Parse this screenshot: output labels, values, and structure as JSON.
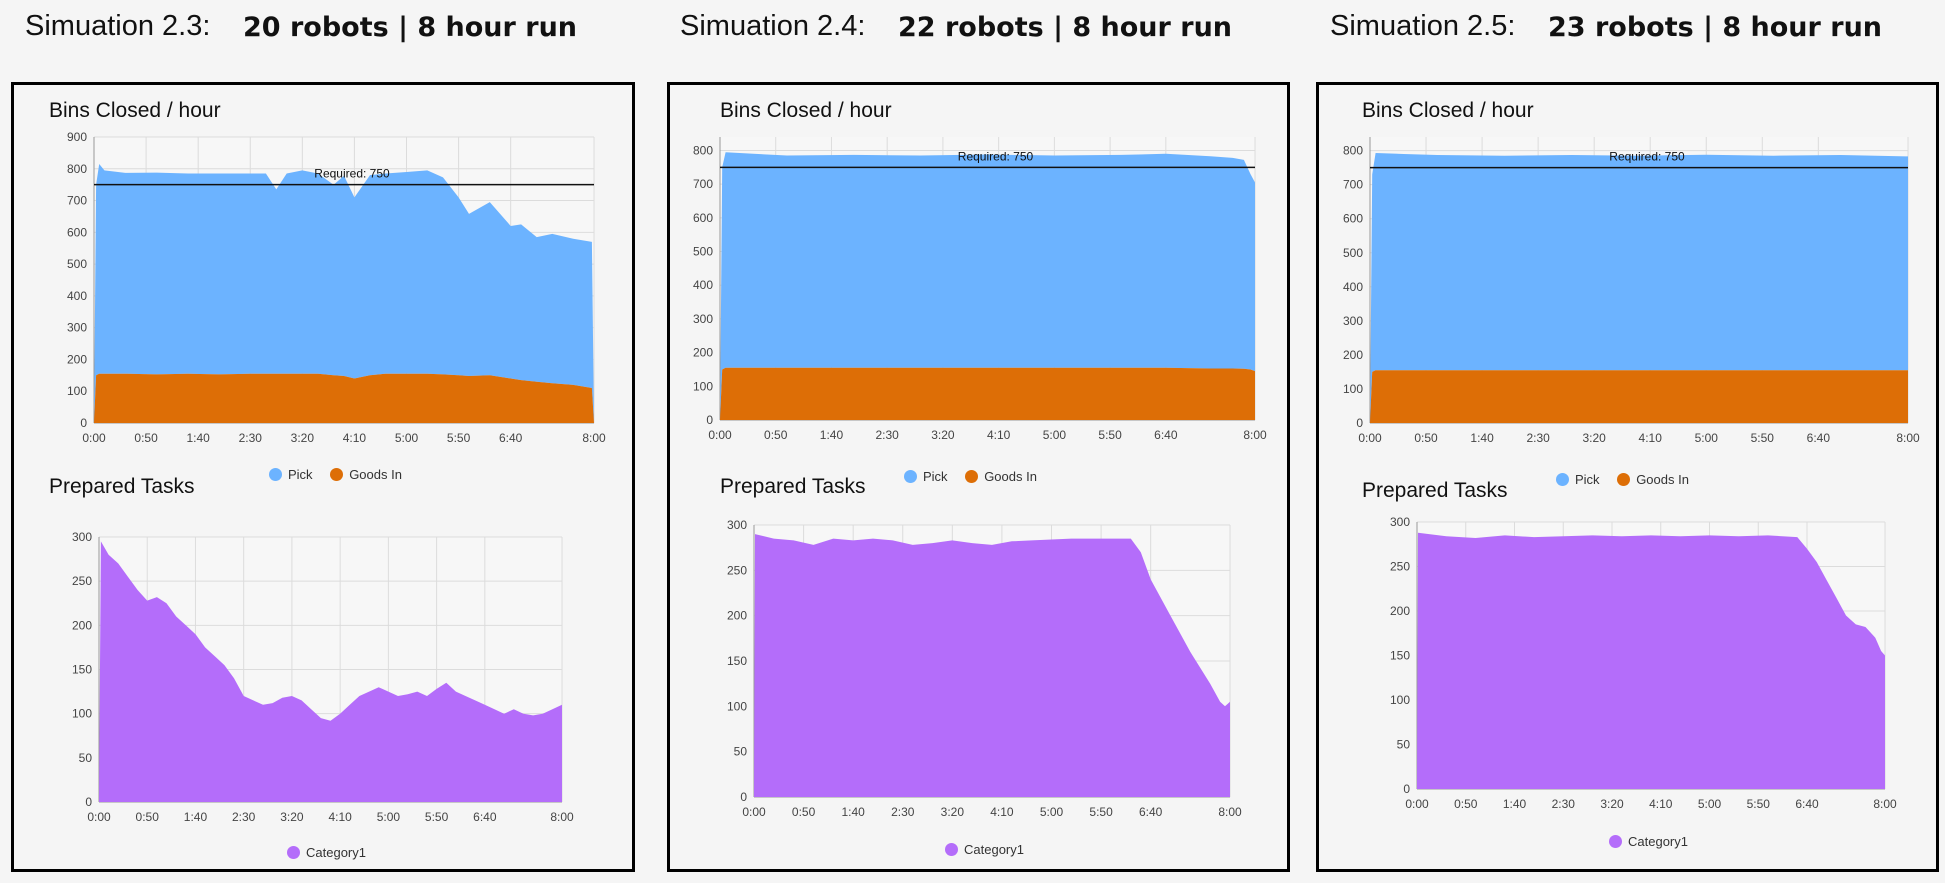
{
  "colors": {
    "pick": "#6cb3ff",
    "goods_in": "#dd6e06",
    "category1": "#b46dfa",
    "grid": "#dcdcdc",
    "required_line": "#111111"
  },
  "simulations": [
    {
      "label": "Simuation 2.3:",
      "description": "20 robots | 8 hour run"
    },
    {
      "label": "Simuation 2.4:",
      "description": "22 robots | 8 hour run"
    },
    {
      "label": "Simuation 2.5:",
      "description": "23 robots | 8 hour run"
    }
  ],
  "chart_titles": {
    "bins": "Bins Closed / hour",
    "tasks": "Prepared Tasks"
  },
  "legend": {
    "pick": "Pick",
    "goods_in": "Goods In",
    "category1": "Category1"
  },
  "chart_data": [
    {
      "type": "area",
      "simulation": "Simuation 2.3",
      "title": "Bins Closed / hour",
      "x_ticks": [
        "0:00",
        "0:50",
        "1:40",
        "2:30",
        "3:20",
        "4:10",
        "5:00",
        "5:50",
        "6:40",
        "8:00"
      ],
      "xlim": [
        0,
        480
      ],
      "y_ticks": [
        0,
        100,
        200,
        300,
        400,
        500,
        600,
        700,
        800,
        900
      ],
      "ylim": [
        0,
        900
      ],
      "stacked": true,
      "annotation": {
        "text": "Required: 750",
        "y": 750
      },
      "x": [
        0,
        2,
        5,
        10,
        30,
        60,
        90,
        120,
        150,
        165,
        175,
        185,
        200,
        215,
        230,
        240,
        250,
        265,
        280,
        300,
        320,
        335,
        350,
        360,
        380,
        400,
        410,
        425,
        440,
        460,
        478,
        480
      ],
      "series": [
        {
          "name": "Pick",
          "values": [
            0,
            600,
            660,
            640,
            632,
            635,
            630,
            632,
            630,
            630,
            580,
            630,
            640,
            630,
            600,
            630,
            570,
            630,
            630,
            635,
            640,
            620,
            560,
            510,
            545,
            480,
            490,
            455,
            470,
            460,
            460,
            0
          ]
        },
        {
          "name": "Goods In",
          "values": [
            0,
            150,
            155,
            155,
            155,
            153,
            155,
            153,
            155,
            155,
            155,
            155,
            155,
            155,
            150,
            148,
            140,
            150,
            155,
            155,
            155,
            153,
            150,
            148,
            150,
            140,
            135,
            130,
            125,
            120,
            110,
            0
          ]
        }
      ]
    },
    {
      "type": "area",
      "simulation": "Simuation 2.3",
      "title": "Prepared Tasks",
      "x_ticks": [
        "0:00",
        "0:50",
        "1:40",
        "2:30",
        "3:20",
        "4:10",
        "5:00",
        "5:50",
        "6:40",
        "8:00"
      ],
      "xlim": [
        0,
        480
      ],
      "y_ticks": [
        0,
        50,
        100,
        150,
        200,
        250,
        300
      ],
      "ylim": [
        0,
        300
      ],
      "x": [
        0,
        2,
        10,
        20,
        30,
        40,
        50,
        60,
        70,
        80,
        90,
        100,
        110,
        120,
        130,
        140,
        150,
        160,
        170,
        180,
        190,
        200,
        210,
        220,
        230,
        240,
        250,
        260,
        270,
        280,
        290,
        300,
        310,
        320,
        330,
        340,
        350,
        360,
        370,
        380,
        390,
        400,
        410,
        420,
        430,
        440,
        450,
        460,
        470,
        480,
        480
      ],
      "series": [
        {
          "name": "Category1",
          "values": [
            0,
            295,
            280,
            270,
            255,
            240,
            228,
            232,
            225,
            210,
            200,
            190,
            175,
            165,
            155,
            140,
            120,
            115,
            110,
            112,
            118,
            120,
            115,
            105,
            95,
            92,
            100,
            110,
            120,
            125,
            130,
            125,
            120,
            122,
            125,
            120,
            128,
            135,
            125,
            120,
            115,
            110,
            105,
            100,
            105,
            100,
            98,
            100,
            105,
            110,
            0
          ]
        }
      ]
    },
    {
      "type": "area",
      "simulation": "Simuation 2.4",
      "title": "Bins Closed / hour",
      "x_ticks": [
        "0:00",
        "0:50",
        "1:40",
        "2:30",
        "3:20",
        "4:10",
        "5:00",
        "5:50",
        "6:40",
        "8:00"
      ],
      "xlim": [
        0,
        480
      ],
      "y_ticks": [
        0,
        100,
        200,
        300,
        400,
        500,
        600,
        700,
        800
      ],
      "ylim": [
        0,
        840
      ],
      "stacked": true,
      "annotation": {
        "text": "Required: 750",
        "y": 750
      },
      "x": [
        0,
        2,
        5,
        30,
        60,
        120,
        180,
        240,
        300,
        360,
        400,
        440,
        460,
        470,
        476,
        480,
        480
      ],
      "series": [
        {
          "name": "Pick",
          "values": [
            0,
            600,
            640,
            635,
            630,
            632,
            630,
            633,
            630,
            632,
            635,
            630,
            625,
            620,
            580,
            560,
            0
          ]
        },
        {
          "name": "Goods In",
          "values": [
            0,
            150,
            155,
            155,
            155,
            155,
            155,
            155,
            155,
            155,
            155,
            153,
            153,
            152,
            150,
            145,
            0
          ]
        }
      ]
    },
    {
      "type": "area",
      "simulation": "Simuation 2.4",
      "title": "Prepared Tasks",
      "x_ticks": [
        "0:00",
        "0:50",
        "1:40",
        "2:30",
        "3:20",
        "4:10",
        "5:00",
        "5:50",
        "6:40",
        "8:00"
      ],
      "xlim": [
        0,
        480
      ],
      "y_ticks": [
        0,
        50,
        100,
        150,
        200,
        250,
        300
      ],
      "ylim": [
        0,
        300
      ],
      "x": [
        0,
        1,
        20,
        40,
        60,
        80,
        100,
        120,
        140,
        160,
        180,
        200,
        220,
        240,
        260,
        280,
        300,
        320,
        380,
        390,
        400,
        420,
        440,
        460,
        470,
        475,
        480,
        480
      ],
      "series": [
        {
          "name": "Category1",
          "values": [
            0,
            290,
            285,
            283,
            278,
            285,
            283,
            285,
            283,
            278,
            280,
            283,
            280,
            278,
            282,
            283,
            284,
            285,
            285,
            270,
            240,
            200,
            160,
            125,
            105,
            100,
            105,
            0
          ]
        }
      ]
    },
    {
      "type": "area",
      "simulation": "Simuation 2.5",
      "title": "Bins Closed / hour",
      "x_ticks": [
        "0:00",
        "0:50",
        "1:40",
        "2:30",
        "3:20",
        "4:10",
        "5:00",
        "5:50",
        "6:40",
        "8:00"
      ],
      "xlim": [
        0,
        480
      ],
      "y_ticks": [
        0,
        100,
        200,
        300,
        400,
        500,
        600,
        700,
        800
      ],
      "ylim": [
        0,
        840
      ],
      "stacked": true,
      "annotation": {
        "text": "Required: 750",
        "y": 750
      },
      "x": [
        0,
        2,
        5,
        30,
        60,
        120,
        180,
        240,
        300,
        360,
        420,
        478,
        480,
        480
      ],
      "series": [
        {
          "name": "Pick",
          "values": [
            0,
            580,
            638,
            635,
            632,
            630,
            632,
            630,
            633,
            630,
            632,
            628,
            628,
            0
          ]
        },
        {
          "name": "Goods In",
          "values": [
            0,
            150,
            155,
            155,
            155,
            155,
            155,
            155,
            155,
            155,
            155,
            155,
            155,
            0
          ]
        }
      ]
    },
    {
      "type": "area",
      "simulation": "Simuation 2.5",
      "title": "Prepared Tasks",
      "x_ticks": [
        "0:00",
        "0:50",
        "1:40",
        "2:30",
        "3:20",
        "4:10",
        "5:00",
        "5:50",
        "6:40",
        "8:00"
      ],
      "xlim": [
        0,
        480
      ],
      "y_ticks": [
        0,
        50,
        100,
        150,
        200,
        250,
        300
      ],
      "ylim": [
        0,
        300
      ],
      "x": [
        0,
        1,
        30,
        60,
        90,
        120,
        150,
        180,
        210,
        240,
        270,
        300,
        330,
        360,
        390,
        400,
        410,
        420,
        430,
        440,
        450,
        460,
        470,
        476,
        480,
        480
      ],
      "series": [
        {
          "name": "Category1",
          "values": [
            0,
            288,
            284,
            282,
            285,
            283,
            284,
            285,
            284,
            285,
            284,
            285,
            284,
            285,
            283,
            270,
            255,
            235,
            215,
            195,
            185,
            182,
            170,
            155,
            150,
            0
          ]
        }
      ]
    }
  ]
}
